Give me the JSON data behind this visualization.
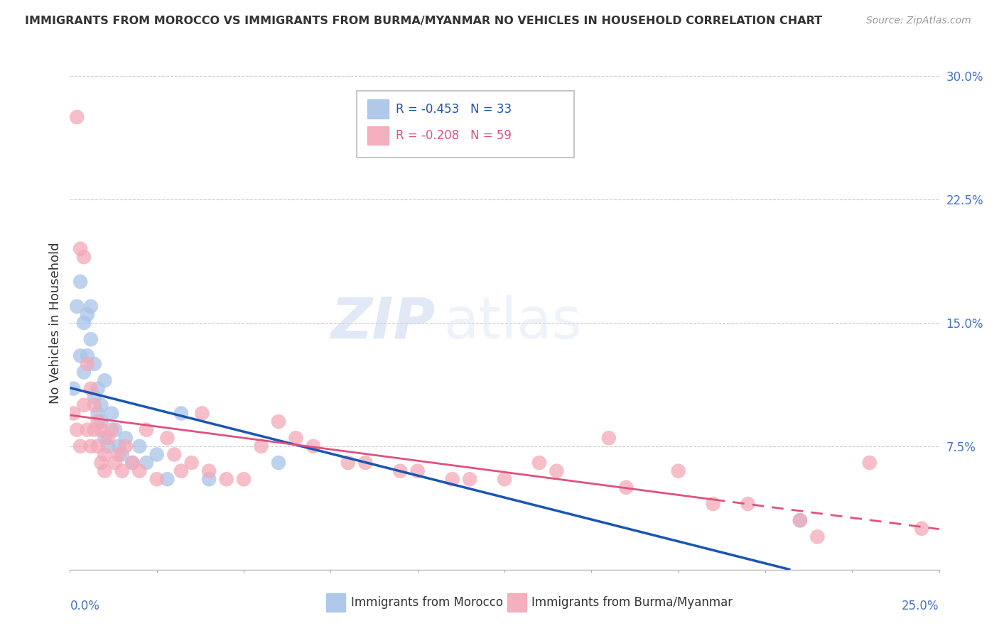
{
  "title": "IMMIGRANTS FROM MOROCCO VS IMMIGRANTS FROM BURMA/MYANMAR NO VEHICLES IN HOUSEHOLD CORRELATION CHART",
  "source": "Source: ZipAtlas.com",
  "ylabel": "No Vehicles in Household",
  "morocco_R": -0.453,
  "morocco_N": 33,
  "burma_R": -0.208,
  "burma_N": 59,
  "morocco_color": "#a8c4e8",
  "burma_color": "#f4a8b8",
  "morocco_line_color": "#1a56b0",
  "burma_line_color": "#e05080",
  "background_color": "#ffffff",
  "watermark_zip": "ZIP",
  "watermark_atlas": "atlas",
  "xlim": [
    0.0,
    0.25
  ],
  "ylim": [
    0.0,
    0.3
  ],
  "morocco_x": [
    0.001,
    0.002,
    0.003,
    0.003,
    0.004,
    0.004,
    0.005,
    0.005,
    0.006,
    0.006,
    0.007,
    0.007,
    0.008,
    0.008,
    0.009,
    0.009,
    0.01,
    0.01,
    0.011,
    0.012,
    0.013,
    0.014,
    0.015,
    0.016,
    0.018,
    0.02,
    0.022,
    0.025,
    0.028,
    0.032,
    0.04,
    0.06,
    0.21
  ],
  "morocco_y": [
    0.11,
    0.16,
    0.13,
    0.175,
    0.15,
    0.12,
    0.155,
    0.13,
    0.14,
    0.16,
    0.105,
    0.125,
    0.095,
    0.11,
    0.09,
    0.1,
    0.08,
    0.115,
    0.075,
    0.095,
    0.085,
    0.075,
    0.07,
    0.08,
    0.065,
    0.075,
    0.065,
    0.07,
    0.055,
    0.095,
    0.055,
    0.065,
    0.03
  ],
  "burma_x": [
    0.001,
    0.002,
    0.002,
    0.003,
    0.003,
    0.004,
    0.004,
    0.005,
    0.005,
    0.006,
    0.006,
    0.007,
    0.007,
    0.008,
    0.008,
    0.009,
    0.009,
    0.01,
    0.01,
    0.011,
    0.012,
    0.013,
    0.014,
    0.015,
    0.016,
    0.018,
    0.02,
    0.022,
    0.025,
    0.028,
    0.032,
    0.038,
    0.045,
    0.055,
    0.065,
    0.08,
    0.095,
    0.11,
    0.125,
    0.14,
    0.155,
    0.175,
    0.195,
    0.215,
    0.23,
    0.245,
    0.03,
    0.035,
    0.04,
    0.05,
    0.06,
    0.07,
    0.085,
    0.1,
    0.115,
    0.135,
    0.16,
    0.185,
    0.21
  ],
  "burma_y": [
    0.095,
    0.085,
    0.275,
    0.195,
    0.075,
    0.1,
    0.19,
    0.085,
    0.125,
    0.11,
    0.075,
    0.1,
    0.085,
    0.075,
    0.09,
    0.065,
    0.085,
    0.07,
    0.06,
    0.08,
    0.085,
    0.065,
    0.07,
    0.06,
    0.075,
    0.065,
    0.06,
    0.085,
    0.055,
    0.08,
    0.06,
    0.095,
    0.055,
    0.075,
    0.08,
    0.065,
    0.06,
    0.055,
    0.055,
    0.06,
    0.08,
    0.06,
    0.04,
    0.02,
    0.065,
    0.025,
    0.07,
    0.065,
    0.06,
    0.055,
    0.09,
    0.075,
    0.065,
    0.06,
    0.055,
    0.065,
    0.05,
    0.04,
    0.03
  ]
}
